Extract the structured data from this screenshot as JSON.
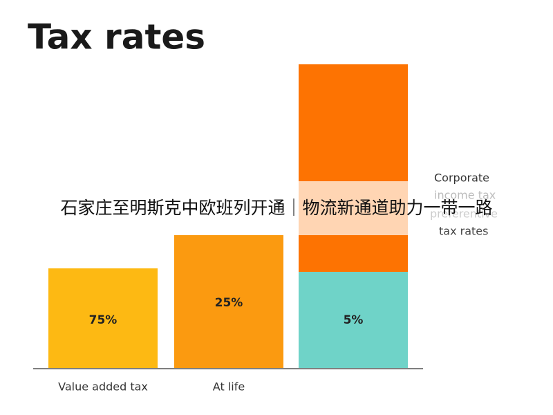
{
  "title": "Tax rates",
  "bars": [
    {
      "category": "Value added tax",
      "label": "75%"
    },
    {
      "category": "At life",
      "label": "25%"
    },
    {
      "label": "5%"
    }
  ],
  "legend": [
    "Corporate",
    "income tax",
    "preferentive",
    "tax rates"
  ],
  "caption": "石家庄至明斯克中欧班列开通｜物流新通道助力一带一路"
}
